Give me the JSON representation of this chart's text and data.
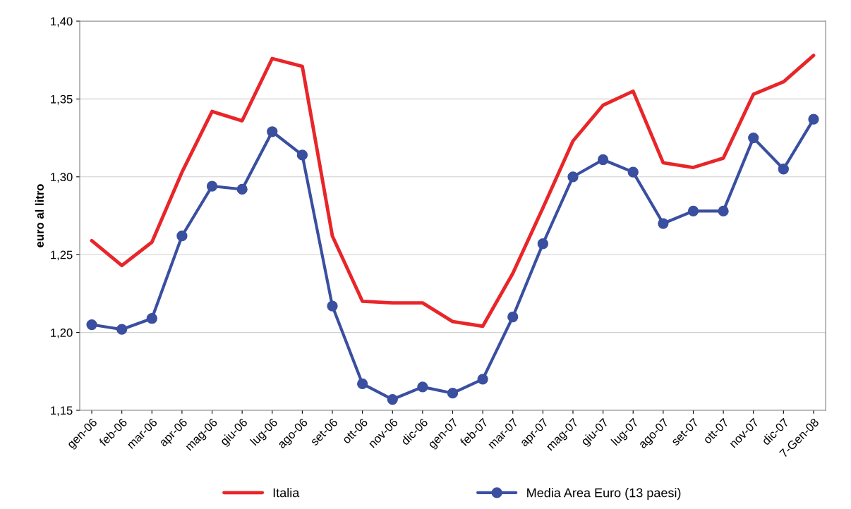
{
  "chart_data": {
    "type": "line",
    "ylabel": "euro al litro",
    "categories": [
      "gen-06",
      "feb-06",
      "mar-06",
      "apr-06",
      "mag-06",
      "giu-06",
      "lug-06",
      "ago-06",
      "set-06",
      "ott-06",
      "nov-06",
      "dic-06",
      "gen-07",
      "feb-07",
      "mar-07",
      "apr-07",
      "mag-07",
      "giu-07",
      "lug-07",
      "ago-07",
      "set-07",
      "ott-07",
      "nov-07",
      "dic-07",
      "7-Gen-08"
    ],
    "series": [
      {
        "name": "Italia",
        "color": "#e8262a",
        "marker": "none",
        "values": [
          1.259,
          1.243,
          1.258,
          1.303,
          1.342,
          1.336,
          1.376,
          1.371,
          1.262,
          1.22,
          1.219,
          1.219,
          1.207,
          1.204,
          1.238,
          1.28,
          1.323,
          1.346,
          1.355,
          1.309,
          1.306,
          1.312,
          1.353,
          1.361,
          1.378
        ]
      },
      {
        "name": "Media Area Euro (13 paesi)",
        "color": "#3a4fa0",
        "marker": "circle",
        "values": [
          1.205,
          1.202,
          1.209,
          1.262,
          1.294,
          1.292,
          1.329,
          1.314,
          1.217,
          1.167,
          1.157,
          1.165,
          1.161,
          1.17,
          1.21,
          1.257,
          1.3,
          1.311,
          1.303,
          1.27,
          1.278,
          1.278,
          1.325,
          1.305,
          1.337
        ]
      }
    ],
    "ylim": [
      1.15,
      1.4
    ],
    "yticks": [
      {
        "value": 1.15,
        "label": "1,15"
      },
      {
        "value": 1.2,
        "label": "1,20"
      },
      {
        "value": 1.25,
        "label": "1,25"
      },
      {
        "value": 1.3,
        "label": "1,30"
      },
      {
        "value": 1.35,
        "label": "1,35"
      },
      {
        "value": 1.4,
        "label": "1,40"
      }
    ],
    "grid": "y",
    "legend": "bottom"
  }
}
